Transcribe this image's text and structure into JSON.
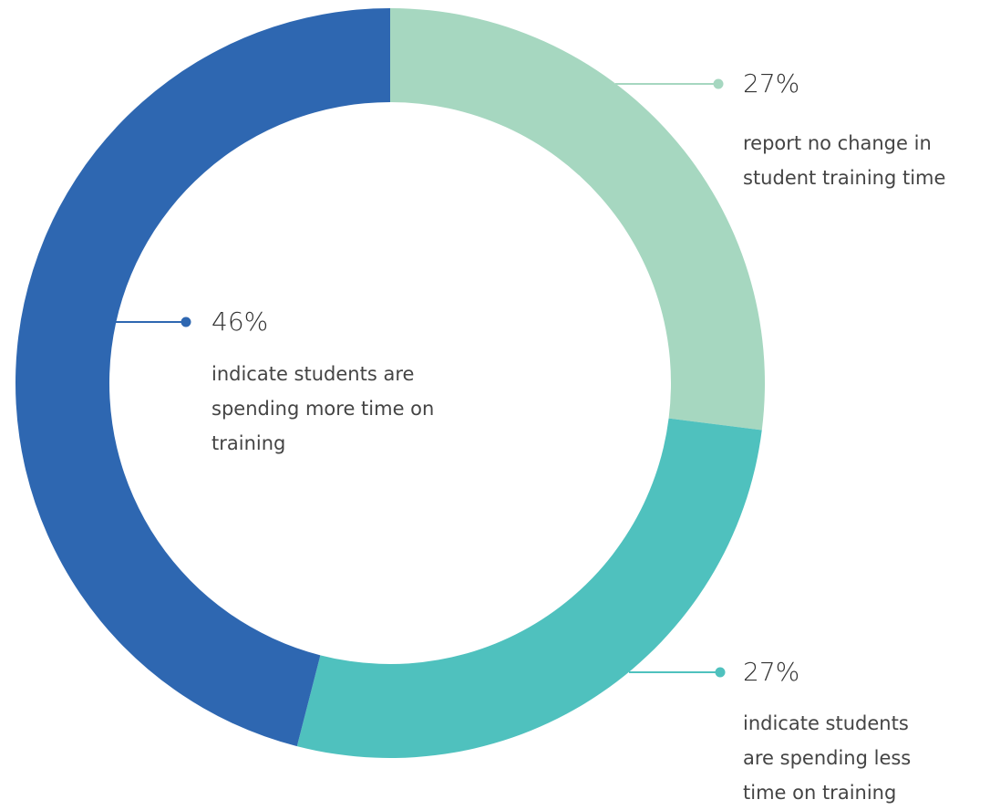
{
  "chart_data": {
    "type": "donut",
    "categories": [
      "report no change in student training time",
      "indicate students are spending less time on training",
      "indicate students are spending more time on training"
    ],
    "values": [
      27,
      27,
      46
    ],
    "value_labels": [
      "27%",
      "27%",
      "46%"
    ],
    "colors": [
      "#a6d7c0",
      "#4fc1be",
      "#2e67b1"
    ]
  }
}
